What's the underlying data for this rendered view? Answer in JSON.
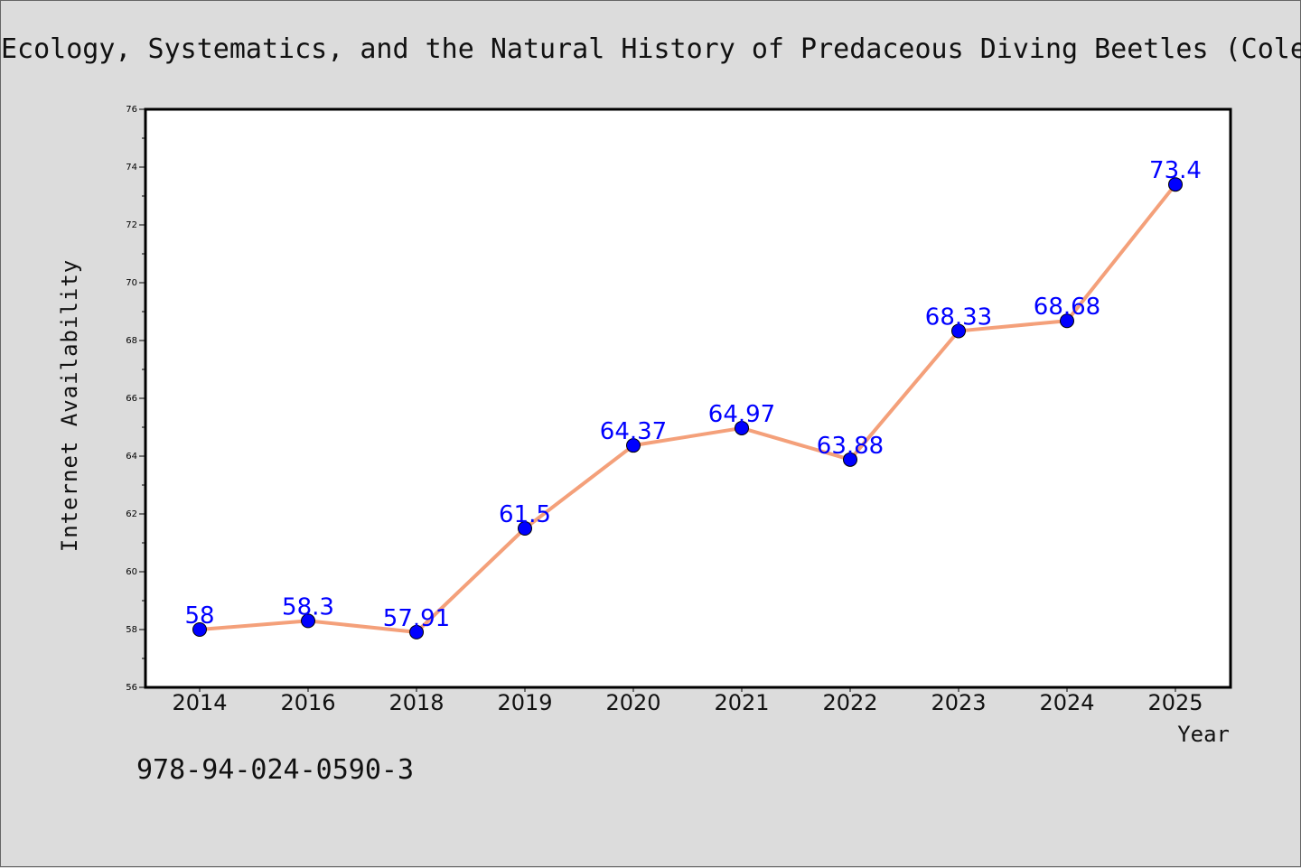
{
  "page": {
    "isbn": "978-94-024-0590-3"
  },
  "chart_data": {
    "type": "line",
    "title": "Ecology, Systematics, and the Natural History of Predaceous Diving Beetles (Coleoptera: Dytiscidae)",
    "xlabel": "Year",
    "ylabel": "Internet Availability",
    "categories": [
      "2014",
      "2016",
      "2018",
      "2019",
      "2020",
      "2021",
      "2022",
      "2023",
      "2024",
      "2025"
    ],
    "series": [
      {
        "values": [
          58,
          58.3,
          57.91,
          61.5,
          64.37,
          64.97,
          63.88,
          68.33,
          68.68,
          73.4
        ]
      }
    ],
    "data_labels": [
      "58",
      "58.3",
      "57.91",
      "61.5",
      "64.37",
      "64.97",
      "63.88",
      "68.33",
      "68.68",
      "73.4"
    ],
    "ylim": [
      56,
      76
    ],
    "yticks": [
      56,
      58,
      60,
      62,
      64,
      66,
      68,
      70,
      72,
      74,
      76
    ],
    "grid": false,
    "colors": {
      "line": "#f4a07a",
      "marker": "#0000ff",
      "label": "#0000ff",
      "plot_bg": "#ffffff",
      "figure_bg": "#dcdcdc"
    }
  }
}
